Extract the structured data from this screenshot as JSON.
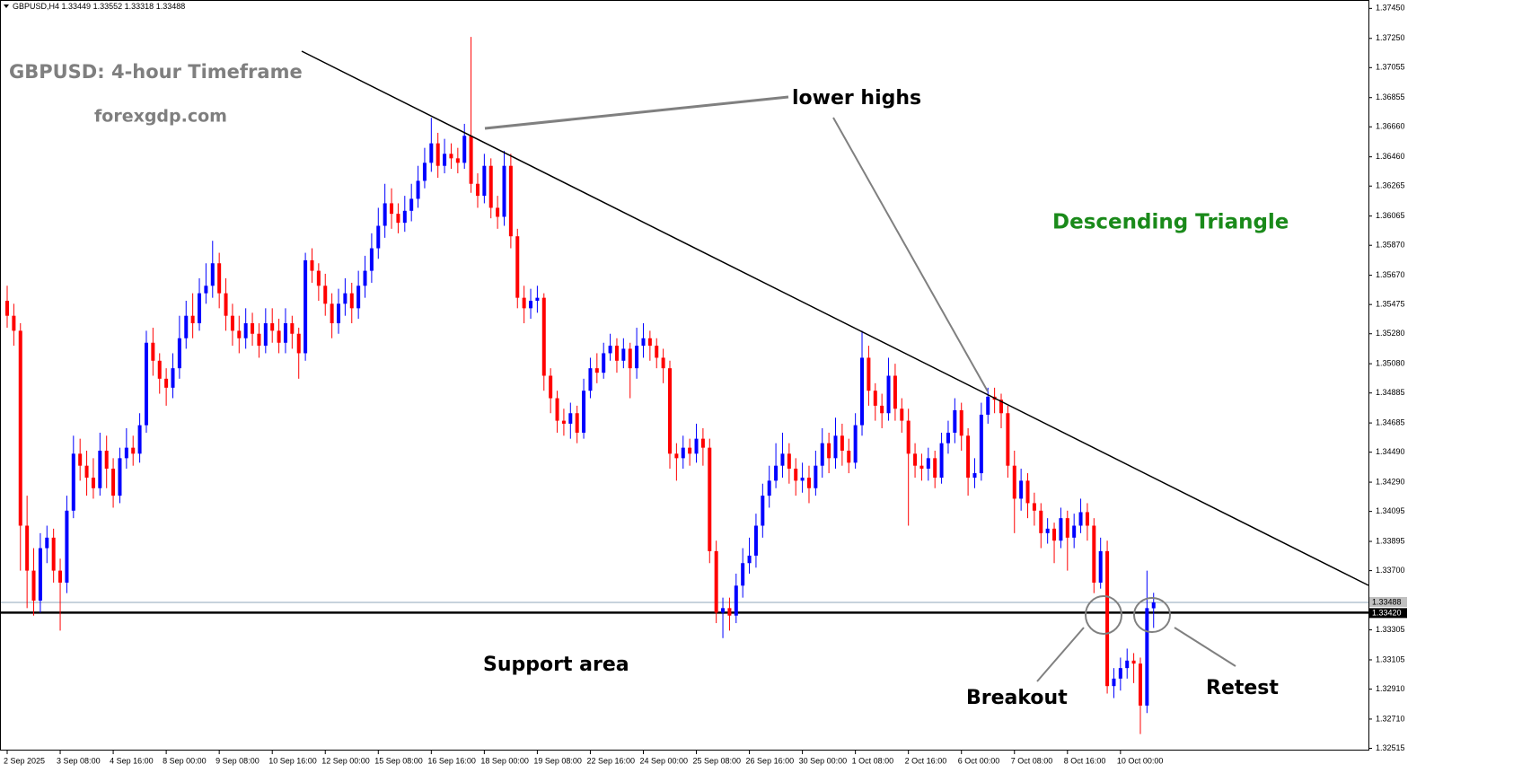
{
  "chart_data": {
    "type": "candlestick",
    "symbol": "GBPUSD,H4",
    "title": "GBPUSD: 4-hour Timeframe",
    "subtitle": "forexgdp.com",
    "annotations": {
      "lower_highs": "lower highs",
      "pattern": "Descending Triangle",
      "support": "Support area",
      "breakout": "Breakout",
      "retest": "Retest"
    },
    "up_color": "#0000ff",
    "down_color": "#ff0000",
    "categories": [
      "2 Sep 2025",
      null,
      null,
      null,
      null,
      null,
      null,
      null,
      "3 Sep 08:00",
      null,
      null,
      null,
      null,
      null,
      null,
      null,
      "4 Sep 16:00",
      null,
      null,
      null,
      null,
      null,
      null,
      null,
      "8 Sep 00:00",
      null,
      null,
      null,
      null,
      null,
      null,
      null,
      "9 Sep 08:00",
      null,
      null,
      null,
      null,
      null,
      null,
      null,
      "10 Sep 16:00",
      null,
      null,
      null,
      null,
      null,
      null,
      null,
      "12 Sep 00:00",
      null,
      null,
      null,
      null,
      null,
      null,
      null,
      "15 Sep 08:00",
      null,
      null,
      null,
      null,
      null,
      null,
      null,
      "16 Sep 16:00",
      null,
      null,
      null,
      null,
      null,
      null,
      null,
      "18 Sep 00:00",
      null,
      null,
      null,
      null,
      null,
      null,
      null,
      "19 Sep 08:00",
      null,
      null,
      null,
      null,
      null,
      null,
      null,
      "22 Sep 16:00",
      null,
      null,
      null,
      null,
      null,
      null,
      null,
      "24 Sep 00:00",
      null,
      null,
      null,
      null,
      null,
      null,
      null,
      "25 Sep 08:00",
      null,
      null,
      null,
      null,
      null,
      null,
      null,
      "26 Sep 16:00",
      null,
      null,
      null,
      null,
      null,
      null,
      null,
      "30 Sep 00:00",
      null,
      null,
      null,
      null,
      null,
      null,
      null,
      "1 Oct 08:00",
      null,
      null,
      null,
      null,
      null,
      null,
      null,
      "2 Oct 16:00",
      null,
      null,
      null,
      null,
      null,
      null,
      null,
      "6 Oct 00:00",
      null,
      null,
      null,
      null,
      null,
      null,
      null,
      "7 Oct 08:00",
      null,
      null,
      null,
      null,
      null,
      null,
      null,
      "8 Oct 16:00",
      null,
      null,
      null,
      null,
      null,
      null,
      null,
      "10 Oct 00:00",
      null,
      null,
      null,
      null,
      null
    ],
    "open": [
      1.355,
      1.354,
      1.353,
      1.34,
      1.337,
      1.335,
      1.3385,
      1.3392,
      1.337,
      1.3362,
      1.341,
      1.3448,
      1.344,
      1.3432,
      1.3425,
      1.345,
      1.3438,
      1.342,
      1.3445,
      1.3452,
      1.3448,
      1.3467,
      1.3522,
      1.351,
      1.3498,
      1.3492,
      1.3505,
      1.3525,
      1.354,
      1.3535,
      1.3555,
      1.356,
      1.3575,
      1.3555,
      1.354,
      1.353,
      1.3525,
      1.3535,
      1.3528,
      1.352,
      1.3535,
      1.353,
      1.3522,
      1.3535,
      1.3528,
      1.3515,
      1.3577,
      1.357,
      1.356,
      1.3548,
      1.3535,
      1.3548,
      1.3555,
      1.3545,
      1.356,
      1.357,
      1.3585,
      1.36,
      1.3615,
      1.3608,
      1.3602,
      1.361,
      1.3618,
      1.363,
      1.3642,
      1.3655,
      1.364,
      1.3648,
      1.3645,
      1.3642,
      1.366,
      1.3628,
      1.362,
      1.364,
      1.3612,
      1.3606,
      1.364,
      1.3593,
      1.3552,
      1.3545,
      1.355,
      1.3552,
      1.35,
      1.3485,
      1.347,
      1.3468,
      1.3475,
      1.3462,
      1.349,
      1.3505,
      1.3502,
      1.3515,
      1.352,
      1.351,
      1.3518,
      1.3505,
      1.352,
      1.3525,
      1.352,
      1.3512,
      1.3505,
      1.3448,
      1.3445,
      1.3452,
      1.3448,
      1.3458,
      1.3452,
      1.3383,
      1.3342,
      1.3345,
      1.334,
      1.336,
      1.3375,
      1.338,
      1.34,
      1.342,
      1.343,
      1.344,
      1.3448,
      1.3438,
      1.343,
      1.3432,
      1.3425,
      1.344,
      1.3455,
      1.3445,
      1.346,
      1.345,
      1.3442,
      1.3467,
      1.3512,
      1.349,
      1.348,
      1.3475,
      1.35,
      1.3478,
      1.347,
      1.3448,
      1.344,
      1.3438,
      1.3445,
      1.3432,
      1.3455,
      1.3462,
      1.3477,
      1.346,
      1.3432,
      1.3435,
      1.3474,
      1.3486,
      1.3484,
      1.3475,
      1.344,
      1.3418,
      1.343,
      1.3415,
      1.341,
      1.3395,
      1.3398,
      1.339,
      1.3405,
      1.3392,
      1.34,
      1.3409,
      1.34,
      1.3362,
      1.3383,
      1.3293,
      1.3298,
      1.3305,
      1.331,
      1.3308,
      1.328,
      1.33449
    ],
    "high": [
      1.356,
      1.3548,
      1.3535,
      1.342,
      1.3385,
      1.3395,
      1.34,
      1.3398,
      1.3378,
      1.342,
      1.346,
      1.3458,
      1.345,
      1.3445,
      1.3462,
      1.346,
      1.3445,
      1.3452,
      1.3465,
      1.346,
      1.3475,
      1.353,
      1.3532,
      1.3515,
      1.3505,
      1.3515,
      1.354,
      1.355,
      1.3555,
      1.3565,
      1.3575,
      1.359,
      1.3582,
      1.3565,
      1.3548,
      1.354,
      1.3545,
      1.3542,
      1.3535,
      1.3545,
      1.3545,
      1.3538,
      1.3545,
      1.354,
      1.3532,
      1.3582,
      1.3585,
      1.3575,
      1.3568,
      1.3555,
      1.3558,
      1.3565,
      1.3562,
      1.357,
      1.358,
      1.3595,
      1.3612,
      1.3628,
      1.3625,
      1.3615,
      1.362,
      1.3628,
      1.364,
      1.3652,
      1.3672,
      1.3662,
      1.3658,
      1.3655,
      1.3652,
      1.3668,
      1.3726,
      1.3635,
      1.3648,
      1.3645,
      1.362,
      1.365,
      1.3648,
      1.3598,
      1.356,
      1.3558,
      1.356,
      1.3555,
      1.3505,
      1.349,
      1.3478,
      1.3482,
      1.348,
      1.3498,
      1.3512,
      1.3515,
      1.3522,
      1.3528,
      1.3525,
      1.3525,
      1.3522,
      1.3532,
      1.3535,
      1.353,
      1.3525,
      1.3518,
      1.351,
      1.3455,
      1.346,
      1.3458,
      1.3468,
      1.3465,
      1.3458,
      1.339,
      1.3352,
      1.3352,
      1.3368,
      1.3385,
      1.3392,
      1.3408,
      1.3428,
      1.344,
      1.3455,
      1.3462,
      1.3455,
      1.3445,
      1.3442,
      1.344,
      1.345,
      1.3465,
      1.3462,
      1.3472,
      1.3468,
      1.3458,
      1.3475,
      1.353,
      1.352,
      1.3495,
      1.3488,
      1.3512,
      1.3508,
      1.3485,
      1.3478,
      1.3455,
      1.3448,
      1.3452,
      1.345,
      1.3462,
      1.347,
      1.3485,
      1.3482,
      1.3465,
      1.3445,
      1.3482,
      1.3492,
      1.3492,
      1.3488,
      1.348,
      1.345,
      1.3438,
      1.3435,
      1.3422,
      1.3415,
      1.3405,
      1.3402,
      1.3412,
      1.341,
      1.3408,
      1.3418,
      1.3415,
      1.3405,
      1.3392,
      1.339,
      1.3305,
      1.3312,
      1.3318,
      1.3315,
      1.3312,
      1.337,
      1.33552
    ],
    "low": [
      1.3532,
      1.352,
      1.337,
      1.3345,
      1.334,
      1.3342,
      1.3375,
      1.3362,
      1.333,
      1.3355,
      1.3405,
      1.343,
      1.342,
      1.3418,
      1.342,
      1.3425,
      1.3412,
      1.3415,
      1.3438,
      1.344,
      1.3442,
      1.3462,
      1.35,
      1.3488,
      1.348,
      1.3485,
      1.3498,
      1.3518,
      1.3525,
      1.353,
      1.3548,
      1.3552,
      1.3545,
      1.353,
      1.352,
      1.3515,
      1.3518,
      1.352,
      1.3512,
      1.3515,
      1.3522,
      1.3515,
      1.3515,
      1.3518,
      1.3498,
      1.351,
      1.3562,
      1.355,
      1.354,
      1.3525,
      1.3528,
      1.354,
      1.3535,
      1.3538,
      1.3552,
      1.3562,
      1.3578,
      1.3592,
      1.3598,
      1.3595,
      1.3596,
      1.3603,
      1.3612,
      1.3625,
      1.3636,
      1.3632,
      1.3635,
      1.3638,
      1.3635,
      1.3638,
      1.3622,
      1.3612,
      1.3615,
      1.3605,
      1.3598,
      1.36,
      1.3585,
      1.3545,
      1.3535,
      1.3538,
      1.3542,
      1.349,
      1.3475,
      1.3462,
      1.346,
      1.3458,
      1.3455,
      1.3458,
      1.3485,
      1.3495,
      1.3498,
      1.351,
      1.3502,
      1.3505,
      1.3485,
      1.3498,
      1.3512,
      1.351,
      1.3505,
      1.3495,
      1.3438,
      1.343,
      1.3438,
      1.344,
      1.3442,
      1.344,
      1.3375,
      1.3335,
      1.3325,
      1.333,
      1.3335,
      1.3352,
      1.3368,
      1.3372,
      1.3392,
      1.3412,
      1.3425,
      1.3432,
      1.3428,
      1.342,
      1.3422,
      1.3415,
      1.342,
      1.3432,
      1.3435,
      1.3438,
      1.344,
      1.3435,
      1.3438,
      1.346,
      1.348,
      1.347,
      1.3465,
      1.347,
      1.347,
      1.3462,
      1.34,
      1.3432,
      1.343,
      1.343,
      1.3425,
      1.3428,
      1.3448,
      1.3455,
      1.345,
      1.342,
      1.3425,
      1.343,
      1.3468,
      1.3475,
      1.3465,
      1.3432,
      1.3395,
      1.341,
      1.3405,
      1.34,
      1.3385,
      1.3388,
      1.3375,
      1.3385,
      1.337,
      1.3385,
      1.3395,
      1.339,
      1.3355,
      1.3358,
      1.3288,
      1.3285,
      1.329,
      1.3298,
      1.3295,
      1.3261,
      1.3275,
      1.33318
    ],
    "close": [
      1.354,
      1.353,
      1.34,
      1.337,
      1.335,
      1.3385,
      1.3392,
      1.337,
      1.3362,
      1.341,
      1.3448,
      1.344,
      1.3432,
      1.3425,
      1.345,
      1.3438,
      1.342,
      1.3445,
      1.3452,
      1.3448,
      1.3467,
      1.3522,
      1.351,
      1.3498,
      1.3492,
      1.3505,
      1.3525,
      1.354,
      1.3535,
      1.3555,
      1.356,
      1.3575,
      1.3555,
      1.354,
      1.353,
      1.3525,
      1.3535,
      1.3528,
      1.352,
      1.3535,
      1.353,
      1.3522,
      1.3535,
      1.3528,
      1.3515,
      1.3577,
      1.357,
      1.356,
      1.3548,
      1.3535,
      1.3548,
      1.3555,
      1.3545,
      1.356,
      1.357,
      1.3585,
      1.36,
      1.3615,
      1.3608,
      1.3602,
      1.361,
      1.3618,
      1.363,
      1.3642,
      1.3655,
      1.364,
      1.3648,
      1.3645,
      1.3642,
      1.366,
      1.3628,
      1.362,
      1.364,
      1.3612,
      1.3606,
      1.364,
      1.3593,
      1.3552,
      1.3545,
      1.355,
      1.3552,
      1.35,
      1.3485,
      1.347,
      1.3468,
      1.3475,
      1.3462,
      1.349,
      1.3505,
      1.3502,
      1.3515,
      1.352,
      1.351,
      1.3518,
      1.3505,
      1.352,
      1.3525,
      1.352,
      1.3512,
      1.3505,
      1.3448,
      1.3445,
      1.3452,
      1.3448,
      1.3458,
      1.3452,
      1.3383,
      1.3342,
      1.3345,
      1.334,
      1.336,
      1.3375,
      1.338,
      1.34,
      1.342,
      1.343,
      1.344,
      1.3448,
      1.3438,
      1.343,
      1.3432,
      1.3425,
      1.344,
      1.3455,
      1.3445,
      1.346,
      1.345,
      1.3442,
      1.3467,
      1.3512,
      1.349,
      1.348,
      1.3475,
      1.35,
      1.3478,
      1.347,
      1.3448,
      1.344,
      1.3438,
      1.3445,
      1.3432,
      1.3455,
      1.3462,
      1.3477,
      1.346,
      1.3432,
      1.3435,
      1.3474,
      1.3486,
      1.3484,
      1.3475,
      1.344,
      1.3418,
      1.343,
      1.3415,
      1.341,
      1.3395,
      1.3398,
      1.339,
      1.3405,
      1.3392,
      1.34,
      1.3409,
      1.34,
      1.3362,
      1.3383,
      1.3293,
      1.3298,
      1.3305,
      1.331,
      1.3308,
      1.328,
      1.3345,
      1.33488
    ],
    "support_level": {
      "value": 1.3342,
      "label": "1.33420"
    },
    "ylim": [
      1.325,
      1.375
    ],
    "yticks": [
      {
        "value": 1.3745,
        "label": "1.37450"
      },
      {
        "value": 1.3725,
        "label": "1.37250"
      },
      1.37055,
      1.36855,
      {
        "value": 1.3666,
        "label": "1.36660"
      },
      {
        "value": 1.3646,
        "label": "1.36460"
      },
      1.36265,
      1.36065,
      {
        "value": 1.3587,
        "label": "1.35870"
      },
      {
        "value": 1.3567,
        "label": "1.35670"
      },
      1.35475,
      {
        "value": 1.3528,
        "label": "1.35280"
      },
      {
        "value": 1.3508,
        "label": "1.35080"
      },
      1.34885,
      1.34685,
      {
        "value": 1.3449,
        "label": "1.34490"
      },
      {
        "value": 1.3429,
        "label": "1.34290"
      },
      1.34095,
      1.33895,
      {
        "value": 1.337,
        "label": "1.33700"
      },
      1.33305,
      1.33105,
      {
        "value": 1.3291,
        "label": "1.32910"
      },
      {
        "value": 1.3271,
        "label": "1.32710"
      },
      1.32515
    ]
  }
}
